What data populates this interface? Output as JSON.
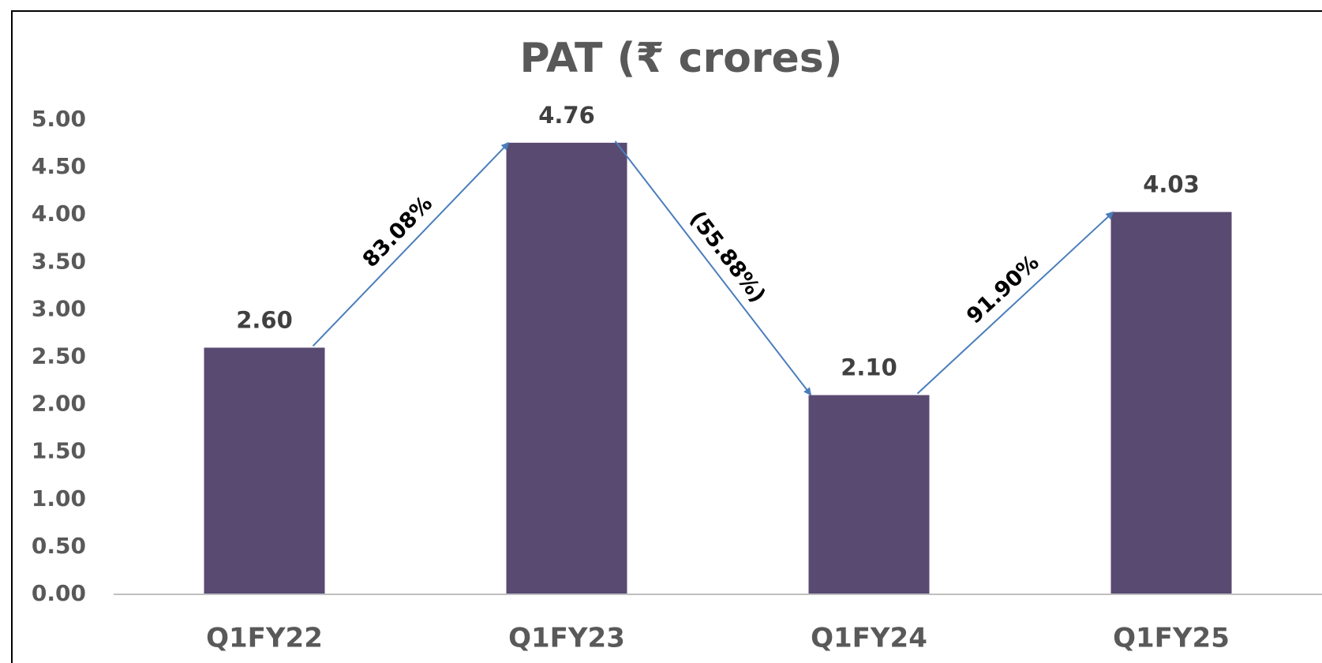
{
  "chart_data": {
    "type": "bar",
    "title": "PAT (₹ crores)",
    "categories": [
      "Q1FY22",
      "Q1FY23",
      "Q1FY24",
      "Q1FY25"
    ],
    "values": [
      2.6,
      4.76,
      2.1,
      4.03
    ],
    "value_labels": [
      "2.60",
      "4.76",
      "2.10",
      "4.03"
    ],
    "color": "#594a72",
    "ylim": [
      0,
      5
    ],
    "yticks": [
      {
        "value": 0,
        "label": "0.00"
      },
      {
        "value": 0.5,
        "label": "0.50"
      },
      {
        "value": 1,
        "label": "1.00"
      },
      {
        "value": 1.5,
        "label": "1.50"
      },
      {
        "value": 2,
        "label": "2.00"
      },
      {
        "value": 2.5,
        "label": "2.50"
      },
      {
        "value": 3,
        "label": "3.00"
      },
      {
        "value": 3.5,
        "label": "3.50"
      },
      {
        "value": 4,
        "label": "4.00"
      },
      {
        "value": 4.5,
        "label": "4.50"
      },
      {
        "value": 5,
        "label": "5.00"
      }
    ],
    "grid": false,
    "annotations": [
      "83.08%",
      "(55.88%)",
      "91.90%"
    ]
  }
}
